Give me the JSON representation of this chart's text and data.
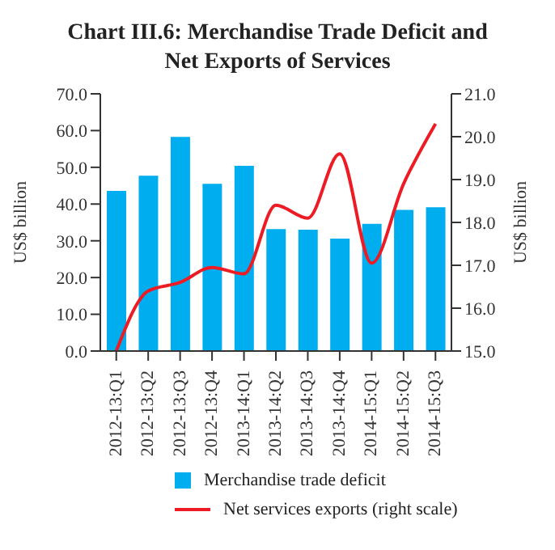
{
  "chart_data": {
    "type": "bar",
    "title": "Chart III.6: Merchandise Trade Deficit and Net Exports of Services",
    "ylabel": "US$ billion",
    "y2label": "US$ billion",
    "categories": [
      "2012-13:Q1",
      "2012-13:Q2",
      "2012-13:Q3",
      "2012-13:Q4",
      "2013-14:Q1",
      "2013-14:Q2",
      "2013-14:Q3",
      "2013-14:Q4",
      "2014-15:Q1",
      "2014-15:Q2",
      "2014-15:Q3"
    ],
    "series": [
      {
        "name": "Merchandise trade deficit",
        "color": "#00aeef",
        "values": [
          43.6,
          47.7,
          58.3,
          45.5,
          50.4,
          33.2,
          33.0,
          30.6,
          34.6,
          38.4,
          39.1
        ]
      },
      {
        "name": "Net services exports (right scale)",
        "type": "line",
        "axis": "y2",
        "color": "#ed1c24",
        "values": [
          15.0,
          16.4,
          16.6,
          16.95,
          16.8,
          18.4,
          18.1,
          19.6,
          17.05,
          18.9,
          20.3
        ]
      }
    ],
    "ylim": [
      0,
      70
    ],
    "yticks": [
      {
        "value": 0,
        "label": "0.0"
      },
      {
        "value": 10,
        "label": "10.0"
      },
      {
        "value": 20,
        "label": "20.0"
      },
      {
        "value": 30,
        "label": "30.0"
      },
      {
        "value": 40,
        "label": "40.0"
      },
      {
        "value": 50,
        "label": "50.0"
      },
      {
        "value": 60,
        "label": "60.0"
      },
      {
        "value": 70,
        "label": "70.0"
      }
    ],
    "y2lim": [
      15,
      21
    ],
    "y2ticks": [
      {
        "value": 15,
        "label": "15.0"
      },
      {
        "value": 16,
        "label": "16.0"
      },
      {
        "value": 17,
        "label": "17.0"
      },
      {
        "value": 18,
        "label": "18.0"
      },
      {
        "value": 19,
        "label": "19.0"
      },
      {
        "value": 20,
        "label": "20.0"
      },
      {
        "value": 21,
        "label": "21.0"
      }
    ],
    "grid": false,
    "legend": "bottom",
    "marker": "none"
  }
}
